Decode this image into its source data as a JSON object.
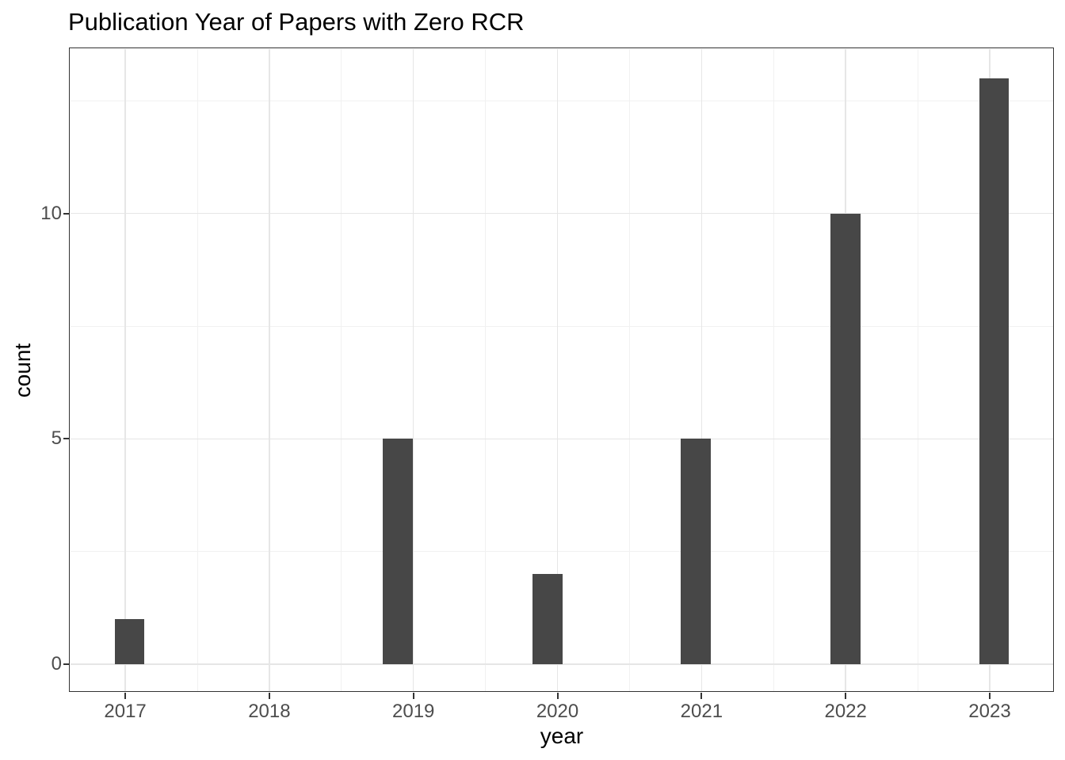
{
  "title": "Publication Year of Papers with Zero RCR",
  "chart_data": {
    "type": "bar",
    "variant": "histogram",
    "title": "Publication Year of Papers with Zero RCR",
    "xlabel": "year",
    "ylabel": "count",
    "categories": [
      "2017",
      "2018",
      "2019",
      "2020",
      "2021",
      "2022",
      "2023"
    ],
    "values": [
      1,
      0,
      5,
      2,
      5,
      10,
      13
    ],
    "x_tick_positions": [
      2017,
      2018,
      2019,
      2020,
      2021,
      2022,
      2023
    ],
    "x_tick_labels": [
      "2017",
      "2018",
      "2019",
      "2020",
      "2021",
      "2022",
      "2023"
    ],
    "y_tick_positions": [
      0,
      5,
      10
    ],
    "y_tick_labels": [
      "0",
      "5",
      "10"
    ],
    "xlim": [
      2016.62,
      2023.44
    ],
    "ylim": [
      -0.6,
      13.65
    ],
    "x_minor_gridlines": [
      2017.5,
      2018.5,
      2019.5,
      2020.5,
      2021.5,
      2022.5
    ],
    "y_minor_gridlines": [
      2.5,
      7.5,
      12.5
    ],
    "grid": true,
    "legend_position": "none",
    "bars": [
      {
        "x": 2017.03,
        "count": 1
      },
      {
        "x": 2018.89,
        "count": 5
      },
      {
        "x": 2019.93,
        "count": 2
      },
      {
        "x": 2020.96,
        "count": 5
      },
      {
        "x": 2022.0,
        "count": 10
      },
      {
        "x": 2023.03,
        "count": 13
      }
    ],
    "bar_width": 0.207,
    "colors": {
      "bar_fill": "#474747",
      "panel_border": "#333333",
      "grid_major": "#e6e6e6",
      "grid_minor": "#f1f1f1",
      "tick_mark": "#333333",
      "axis_text": "#4d4d4d",
      "axis_title_text": "#000000",
      "title_text": "#000000",
      "panel_background": "#ffffff"
    }
  }
}
